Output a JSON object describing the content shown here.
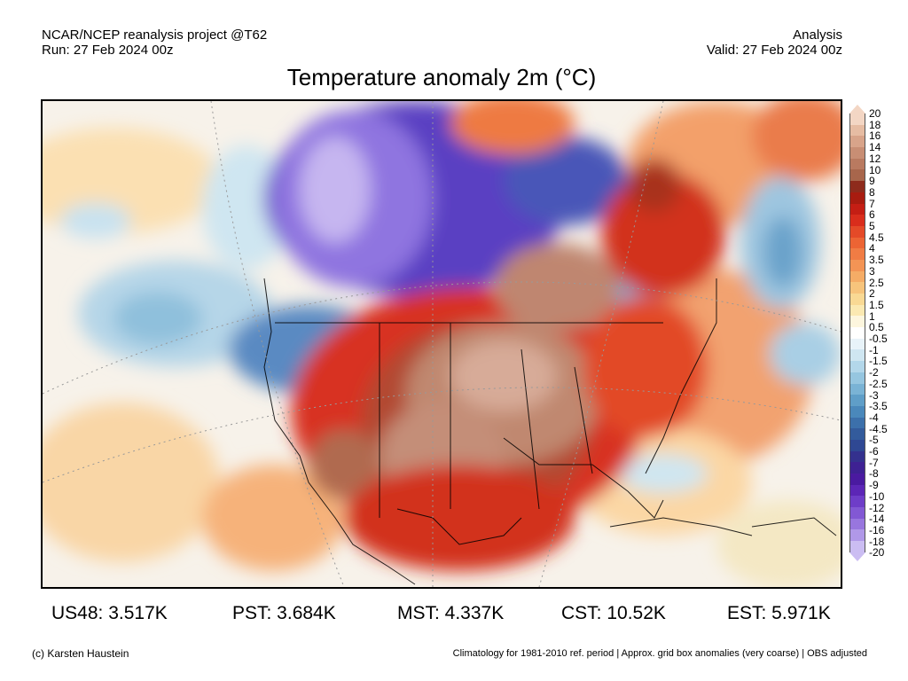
{
  "header": {
    "project": "NCAR/NCEP reanalysis project @T62",
    "run": "Run: 27 Feb 2024 00z",
    "kind": "Analysis",
    "valid": "Valid: 27 Feb 2024 00z",
    "title": "Temperature anomaly 2m (°C)"
  },
  "colorbar": {
    "labels": [
      "20",
      "18",
      "16",
      "14",
      "12",
      "10",
      "9",
      "8",
      "7",
      "6",
      "5",
      "4.5",
      "4",
      "3.5",
      "3",
      "2.5",
      "2",
      "1.5",
      "1",
      "0.5",
      "-0.5",
      "-1",
      "-1.5",
      "-2",
      "-2.5",
      "-3",
      "-3.5",
      "-4",
      "-4.5",
      "-5",
      "-6",
      "-7",
      "-8",
      "-9",
      "-10",
      "-12",
      "-14",
      "-16",
      "-18",
      "-20"
    ],
    "colors": [
      "#f3d6c4",
      "#e6bca3",
      "#d8a48a",
      "#c88e74",
      "#b97a60",
      "#a8664c",
      "#8e2b1c",
      "#a81c10",
      "#c41e14",
      "#d92d1c",
      "#e44a28",
      "#ec6434",
      "#f07c44",
      "#f39455",
      "#f5ac66",
      "#f7c47c",
      "#f9d994",
      "#fbe9b2",
      "#fdf6de",
      "#ffffff",
      "#e8f3f9",
      "#cfe6f1",
      "#b3d7ea",
      "#96c6e0",
      "#7ab3d5",
      "#5f9ec8",
      "#4a88bb",
      "#3c70ab",
      "#335b9c",
      "#2f4893",
      "#34318e",
      "#3e2193",
      "#4a1aa0",
      "#5c26b6",
      "#6e3dc8",
      "#8258d4",
      "#9876de",
      "#b098e8",
      "#cbbdf2"
    ]
  },
  "stats": [
    {
      "label": "US48: 3.517K"
    },
    {
      "label": "PST: 3.684K"
    },
    {
      "label": "MST: 4.337K"
    },
    {
      "label": "CST: 10.52K"
    },
    {
      "label": "EST: 5.971K"
    }
  ],
  "footer": {
    "credit": "(c) Karsten Haustein",
    "note": "Climatology for 1981-2010 ref. period | Approx. grid box anomalies (very coarse) | OBS adjusted"
  }
}
